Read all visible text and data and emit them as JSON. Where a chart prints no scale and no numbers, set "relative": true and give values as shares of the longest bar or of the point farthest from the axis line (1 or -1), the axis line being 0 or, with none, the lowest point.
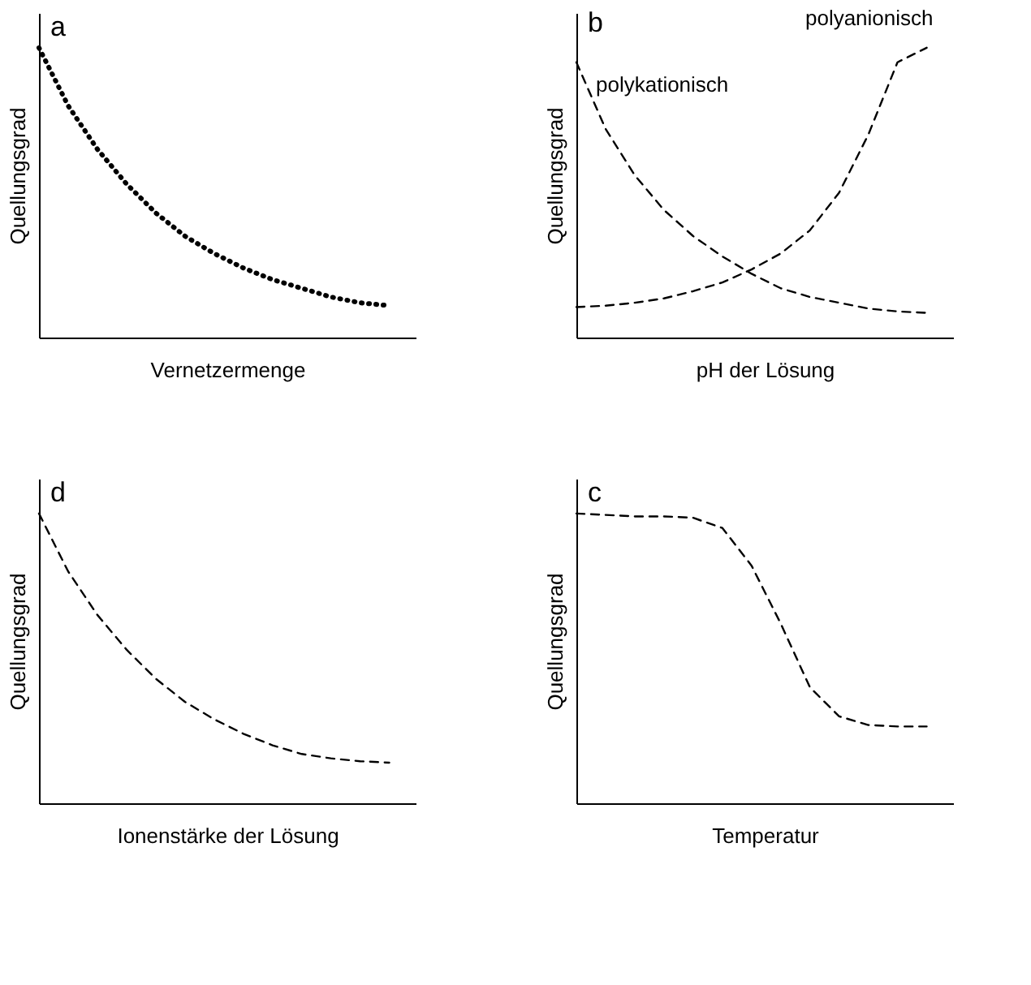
{
  "chart_data": [
    {
      "type": "line",
      "title": "a",
      "xlabel": "Vernetzermenge",
      "ylabel": "Quellungsgrad",
      "relative": true,
      "tick_labels": false,
      "grid": false,
      "legend": false,
      "line_style": "dotted",
      "marker": "none",
      "categories": [
        null,
        null,
        null,
        null,
        null,
        null,
        null,
        null,
        null,
        null,
        null,
        null,
        null
      ],
      "series": [
        {
          "color": "#000000",
          "values": [
            1.0,
            0.8,
            0.65,
            0.53,
            0.43,
            0.35,
            0.29,
            0.24,
            0.2,
            0.17,
            0.14,
            0.12,
            0.11
          ]
        }
      ]
    },
    {
      "type": "line",
      "title": "b",
      "xlabel": "pH der Lösung",
      "ylabel": "Quellungsgrad",
      "relative": true,
      "tick_labels": false,
      "grid": false,
      "legend": false,
      "line_style": "dashed",
      "marker": "none",
      "categories": [
        null,
        null,
        null,
        null,
        null,
        null,
        null,
        null,
        null,
        null,
        null,
        null,
        null
      ],
      "series": [
        {
          "name": "polykationisch",
          "color": "#000000",
          "values": [
            0.95,
            0.72,
            0.56,
            0.44,
            0.35,
            0.28,
            0.22,
            0.17,
            0.14,
            0.12,
            0.1,
            0.09,
            0.085
          ]
        },
        {
          "name": "polyanionisch",
          "color": "#000000",
          "values": [
            0.105,
            0.11,
            0.12,
            0.135,
            0.16,
            0.19,
            0.235,
            0.29,
            0.37,
            0.5,
            0.7,
            0.95,
            1.0
          ]
        }
      ]
    },
    {
      "type": "line",
      "title": "d",
      "xlabel": "Ionenstärke der Lösung",
      "ylabel": "Quellungsgrad",
      "relative": true,
      "tick_labels": false,
      "grid": false,
      "legend": false,
      "line_style": "dashed",
      "marker": "none",
      "categories": [
        null,
        null,
        null,
        null,
        null,
        null,
        null,
        null,
        null,
        null,
        null,
        null,
        null
      ],
      "series": [
        {
          "color": "#000000",
          "values": [
            1.0,
            0.8,
            0.65,
            0.53,
            0.43,
            0.35,
            0.29,
            0.24,
            0.2,
            0.17,
            0.155,
            0.145,
            0.14
          ]
        }
      ]
    },
    {
      "type": "line",
      "title": "c",
      "xlabel": "Temperatur",
      "ylabel": "Quellungsgrad",
      "relative": true,
      "tick_labels": false,
      "grid": false,
      "legend": false,
      "line_style": "dashed",
      "marker": "none",
      "categories": [
        null,
        null,
        null,
        null,
        null,
        null,
        null,
        null,
        null,
        null,
        null,
        null,
        null
      ],
      "series": [
        {
          "color": "#000000",
          "values": [
            1.0,
            0.995,
            0.99,
            0.99,
            0.985,
            0.95,
            0.82,
            0.62,
            0.4,
            0.3,
            0.27,
            0.265,
            0.265
          ]
        }
      ]
    }
  ]
}
